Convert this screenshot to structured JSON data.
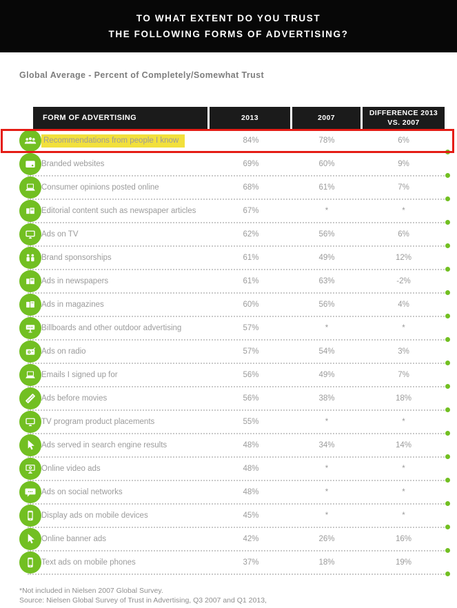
{
  "banner": {
    "line1": "TO WHAT EXTENT DO YOU TRUST",
    "line2": "THE FOLLOWING FORMS OF ADVERTISING?"
  },
  "subtitle": "Global Average - Percent of Completely/Somewhat Trust",
  "table": {
    "headers": [
      "FORM OF ADVERTISING",
      "2013",
      "2007",
      "DIFFERENCE 2013 VS. 2007"
    ],
    "rows": [
      {
        "icon": "people-icon",
        "label": "Recommendations from people I know",
        "v2013": "84%",
        "v2007": "78%",
        "diff": "6%",
        "highlighted": true
      },
      {
        "icon": "browser-icon",
        "label": "Branded websites",
        "v2013": "69%",
        "v2007": "60%",
        "diff": "9%"
      },
      {
        "icon": "laptop-icon",
        "label": "Consumer opinions posted online",
        "v2013": "68%",
        "v2007": "61%",
        "diff": "7%"
      },
      {
        "icon": "newspaper-icon",
        "label": "Editorial content such as newspaper articles",
        "v2013": "67%",
        "v2007": "*",
        "diff": "*"
      },
      {
        "icon": "tv-icon",
        "label": "Ads on TV",
        "v2013": "62%",
        "v2007": "56%",
        "diff": "6%"
      },
      {
        "icon": "audience-icon",
        "label": "Brand sponsorships",
        "v2013": "61%",
        "v2007": "49%",
        "diff": "12%"
      },
      {
        "icon": "newspaper-icon",
        "label": "Ads in newspapers",
        "v2013": "61%",
        "v2007": "63%",
        "diff": "-2%"
      },
      {
        "icon": "magazine-icon",
        "label": "Ads in magazines",
        "v2013": "60%",
        "v2007": "56%",
        "diff": "4%"
      },
      {
        "icon": "billboard-icon",
        "label": "Billboards and other outdoor advertising",
        "v2013": "57%",
        "v2007": "*",
        "diff": "*"
      },
      {
        "icon": "radio-icon",
        "label": "Ads on radio",
        "v2013": "57%",
        "v2007": "54%",
        "diff": "3%"
      },
      {
        "icon": "laptop-icon",
        "label": "Emails I signed up for",
        "v2013": "56%",
        "v2007": "49%",
        "diff": "7%"
      },
      {
        "icon": "film-icon",
        "label": "Ads before movies",
        "v2013": "56%",
        "v2007": "38%",
        "diff": "18%"
      },
      {
        "icon": "tv-icon",
        "label": "TV program product placements",
        "v2013": "55%",
        "v2007": "*",
        "diff": "*"
      },
      {
        "icon": "cursor-icon",
        "label": "Ads served in search engine results",
        "v2013": "48%",
        "v2007": "34%",
        "diff": "14%"
      },
      {
        "icon": "video-monitor-icon",
        "label": "Online video ads",
        "v2013": "48%",
        "v2007": "*",
        "diff": "*"
      },
      {
        "icon": "speech-bubble-icon",
        "label": "Ads on social networks",
        "v2013": "48%",
        "v2007": "*",
        "diff": "*"
      },
      {
        "icon": "mobile-icon",
        "label": "Display ads on mobile devices",
        "v2013": "45%",
        "v2007": "*",
        "diff": "*"
      },
      {
        "icon": "cursor-icon",
        "label": "Online banner ads",
        "v2013": "42%",
        "v2007": "26%",
        "diff": "16%"
      },
      {
        "icon": "mobile-icon",
        "label": "Text ads on mobile phones",
        "v2013": "37%",
        "v2007": "18%",
        "diff": "19%"
      }
    ]
  },
  "footnote": {
    "line1": "*Not included in Nielsen 2007 Global Survey.",
    "line2": "Source: Nielsen Global Survey of Trust in Advertising, Q3 2007 and Q1 2013,"
  },
  "colors": {
    "accent_green": "#72bf22",
    "highlight_yellow": "#f2e03c",
    "annotation_red": "#e51c15",
    "header_black": "#1b1b1b",
    "text_gray": "#9b9b9b"
  },
  "chart_data": {
    "type": "table",
    "title": "To what extent do you trust the following forms of advertising?",
    "subtitle": "Global Average - Percent of Completely/Somewhat Trust",
    "columns": [
      "Form of Advertising",
      "2013",
      "2007",
      "Difference 2013 vs. 2007"
    ],
    "categories": [
      "Recommendations from people I know",
      "Branded websites",
      "Consumer opinions posted online",
      "Editorial content such as newspaper articles",
      "Ads on TV",
      "Brand sponsorships",
      "Ads in newspapers",
      "Ads in magazines",
      "Billboards and other outdoor advertising",
      "Ads on radio",
      "Emails I signed up for",
      "Ads before movies",
      "TV program product placements",
      "Ads served in search engine results",
      "Online video ads",
      "Ads on social networks",
      "Display ads on mobile devices",
      "Online banner ads",
      "Text ads on mobile phones"
    ],
    "series": [
      {
        "name": "2013",
        "values": [
          84,
          69,
          68,
          67,
          62,
          61,
          61,
          60,
          57,
          57,
          56,
          56,
          55,
          48,
          48,
          48,
          45,
          42,
          37
        ]
      },
      {
        "name": "2007",
        "values": [
          78,
          60,
          61,
          null,
          56,
          49,
          63,
          56,
          null,
          54,
          49,
          38,
          null,
          34,
          null,
          null,
          null,
          26,
          18
        ]
      },
      {
        "name": "Difference 2013 vs. 2007",
        "values": [
          6,
          9,
          7,
          null,
          6,
          12,
          -2,
          4,
          null,
          3,
          7,
          18,
          null,
          14,
          null,
          null,
          null,
          16,
          19
        ]
      }
    ],
    "annotations": [
      "First row highlighted in yellow and outlined with a red box",
      "* = Not included in Nielsen 2007 Global Survey"
    ]
  }
}
